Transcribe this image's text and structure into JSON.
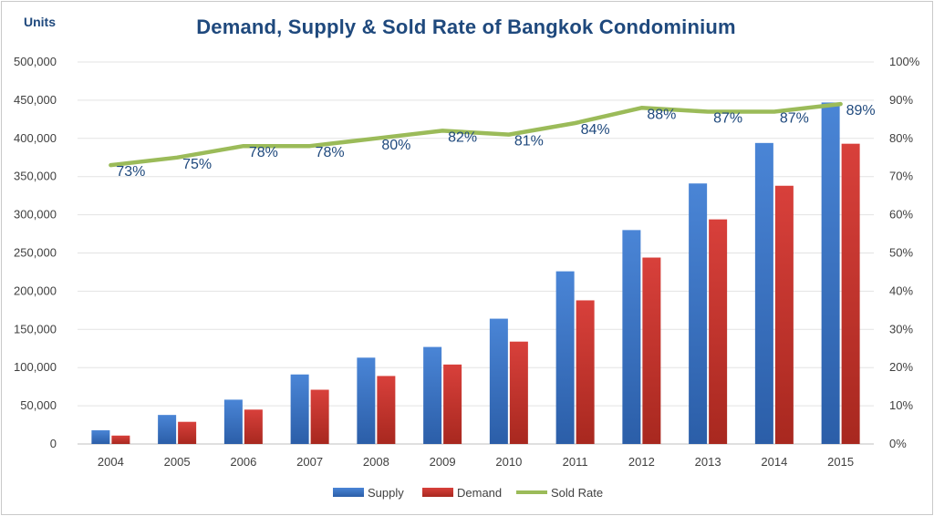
{
  "title": "Demand, Supply & Sold Rate of Bangkok Condominium",
  "units_label": "Units",
  "chart_data": {
    "type": "bar",
    "title": "Demand, Supply & Sold Rate of Bangkok Condominium",
    "ylabel": "Units",
    "categories": [
      "2004",
      "2005",
      "2006",
      "2007",
      "2008",
      "2009",
      "2010",
      "2011",
      "2012",
      "2013",
      "2014",
      "2015"
    ],
    "series": [
      {
        "name": "Supply",
        "type": "bar",
        "color": "#3a73c4",
        "axis": "left",
        "values": [
          18000,
          38000,
          58000,
          91000,
          113000,
          127000,
          164000,
          226000,
          280000,
          341000,
          394000,
          447000
        ]
      },
      {
        "name": "Demand",
        "type": "bar",
        "color": "#c8332f",
        "axis": "left",
        "values": [
          11000,
          29000,
          45000,
          71000,
          89000,
          104000,
          134000,
          188000,
          244000,
          294000,
          338000,
          393000
        ]
      },
      {
        "name": "Sold Rate",
        "type": "line",
        "color": "#9bbb59",
        "axis": "right",
        "values": [
          73,
          75,
          78,
          78,
          80,
          82,
          81,
          84,
          88,
          87,
          87,
          89
        ],
        "labels": [
          "73%",
          "75%",
          "78%",
          "78%",
          "80%",
          "82%",
          "81%",
          "84%",
          "88%",
          "87%",
          "87%",
          "89%"
        ]
      }
    ],
    "ylim": [
      0,
      500000
    ],
    "y_ticks": [
      "0",
      "50,000",
      "100,000",
      "150,000",
      "200,000",
      "250,000",
      "300,000",
      "350,000",
      "400,000",
      "450,000",
      "500,000"
    ],
    "y2lim": [
      0,
      100
    ],
    "y2_ticks": [
      "0%",
      "10%",
      "20%",
      "30%",
      "40%",
      "50%",
      "60%",
      "70%",
      "80%",
      "90%",
      "100%"
    ],
    "grid": true,
    "legend_position": "bottom"
  }
}
